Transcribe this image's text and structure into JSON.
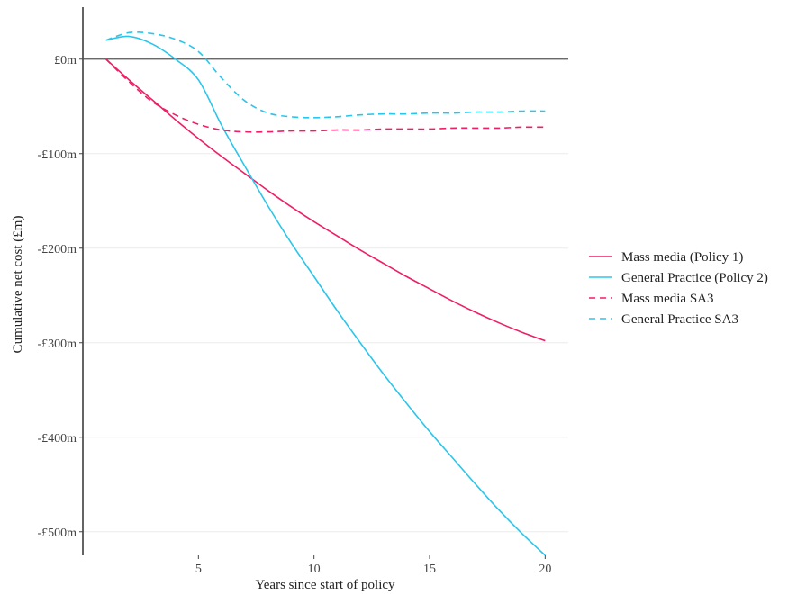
{
  "chart_data": {
    "type": "line",
    "title": "",
    "xlabel": "Years since start of policy",
    "ylabel": "Cumulative net cost (£m)",
    "xlim": [
      0,
      21
    ],
    "ylim": [
      -525,
      55
    ],
    "x_ticks": [
      5,
      10,
      15,
      20
    ],
    "y_ticks": [
      {
        "value": 0,
        "label": "£0m"
      },
      {
        "value": -100,
        "label": "-£100m"
      },
      {
        "value": -200,
        "label": "-£200m"
      },
      {
        "value": -300,
        "label": "-£300m"
      },
      {
        "value": -400,
        "label": "-£400m"
      },
      {
        "value": -500,
        "label": "-£500m"
      }
    ],
    "grid": "horizontal",
    "reference_line": 0,
    "legend_position": "right",
    "x": [
      1,
      2,
      3,
      4,
      5,
      6,
      7,
      8,
      9,
      10,
      11,
      12,
      13,
      14,
      15,
      16,
      17,
      18,
      19,
      20
    ],
    "series": [
      {
        "name": "Mass media (Policy 1)",
        "color": "#EE1F66",
        "dash": "solid",
        "values": [
          0,
          -22,
          -43,
          -64,
          -84,
          -103,
          -121,
          -139,
          -156,
          -172,
          -187,
          -202,
          -216,
          -230,
          -243,
          -256,
          -268,
          -279,
          -289,
          -298
        ]
      },
      {
        "name": "General Practice (Policy 2)",
        "color": "#2BC5EC",
        "dash": "solid",
        "values": [
          20,
          24,
          16,
          0,
          -22,
          -70,
          -113,
          -155,
          -194,
          -230,
          -266,
          -300,
          -333,
          -364,
          -394,
          -422,
          -450,
          -477,
          -502,
          -525
        ]
      },
      {
        "name": "Mass media SA3",
        "color": "#EE1F66",
        "dash": "dashed",
        "values": [
          0,
          -24,
          -45,
          -59,
          -69,
          -75,
          -77,
          -77,
          -76,
          -76,
          -75,
          -75,
          -74,
          -74,
          -74,
          -73,
          -73,
          -73,
          -72,
          -72
        ]
      },
      {
        "name": "General Practice SA3",
        "color": "#2BC5EC",
        "dash": "dashed",
        "values": [
          20,
          28,
          27,
          21,
          8,
          -20,
          -44,
          -57,
          -61,
          -62,
          -61,
          -59,
          -58,
          -58,
          -57,
          -57,
          -56,
          -56,
          -55,
          -55
        ]
      }
    ]
  }
}
